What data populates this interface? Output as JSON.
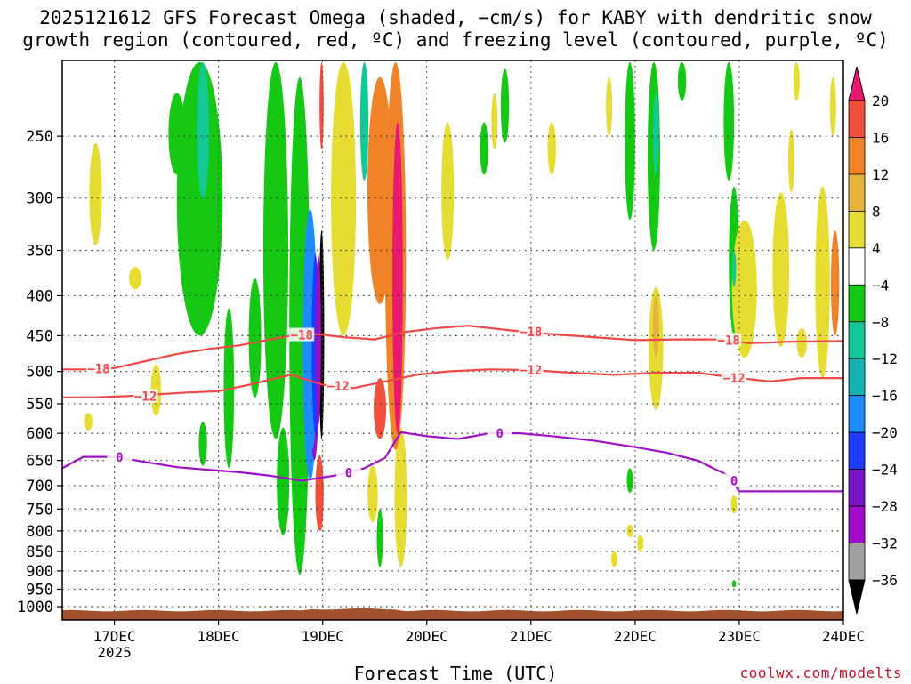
{
  "chart_data": {
    "type": "heatmap",
    "title_line1": "2025121612 GFS Forecast Omega (shaded, −cm/s) for KABY with dendritic snow",
    "title_line2": "growth region (contoured, red, ºC) and freezing level (contoured, purple, ºC)",
    "xlabel": "Forecast Time (UTC)",
    "credit": "coolwx.com/modelts",
    "x_ticks": [
      {
        "day": 17,
        "label": "17DEC",
        "sub": "2025"
      },
      {
        "day": 18,
        "label": "18DEC"
      },
      {
        "day": 19,
        "label": "19DEC"
      },
      {
        "day": 20,
        "label": "20DEC"
      },
      {
        "day": 21,
        "label": "21DEC"
      },
      {
        "day": 22,
        "label": "22DEC"
      },
      {
        "day": 23,
        "label": "23DEC"
      },
      {
        "day": 24,
        "label": "24DEC"
      }
    ],
    "xlim_day": [
      16.5,
      24.0
    ],
    "y_ticks": [
      250,
      300,
      350,
      400,
      450,
      500,
      550,
      600,
      650,
      700,
      750,
      800,
      850,
      900,
      950,
      1000
    ],
    "ylim_hpa": [
      200,
      1040
    ],
    "grid": true,
    "colorbar": {
      "labels": [
        "20",
        "16",
        "12",
        "8",
        "4",
        "−4",
        "−8",
        "−12",
        "−16",
        "−20",
        "−24",
        "−28",
        "−32",
        "−36"
      ],
      "colors": [
        "#e8196e",
        "#f0503c",
        "#f08228",
        "#e6b43c",
        "#e6dc32",
        "#ffffff",
        "#14c814",
        "#14c896",
        "#14b4b4",
        "#1e8cff",
        "#1e3cff",
        "#7814c8",
        "#a00ac8",
        "#a0a0a0"
      ]
    },
    "omega_colors": {
      "strong_up": "#e8196e",
      "up_16": "#f0503c",
      "up_12": "#f08228",
      "up_8": "#e6b43c",
      "up_4": "#e6dc32",
      "down_4": "#14c814",
      "down_8": "#14c896",
      "down_12": "#14b4b4",
      "down_16": "#1e8cff",
      "down_20": "#1e3cff",
      "down_28": "#a00ac8",
      "extreme": "#000000"
    },
    "omega_blobs": [
      {
        "day": 16.82,
        "hpa": 300,
        "w": 0.06,
        "h": 90,
        "level": 4
      },
      {
        "day": 16.75,
        "hpa": 580,
        "w": 0.04,
        "h": 30,
        "level": 4
      },
      {
        "day": 17.2,
        "hpa": 380,
        "w": 0.06,
        "h": 25,
        "level": 4
      },
      {
        "day": 17.4,
        "hpa": 530,
        "w": 0.05,
        "h": 80,
        "level": 4
      },
      {
        "day": 17.6,
        "hpa": 250,
        "w": 0.08,
        "h": 60,
        "level": -4
      },
      {
        "day": 17.82,
        "hpa": 320,
        "w": 0.22,
        "h": 260,
        "level": -4
      },
      {
        "day": 17.85,
        "hpa": 250,
        "w": 0.06,
        "h": 100,
        "level": -8
      },
      {
        "day": 17.85,
        "hpa": 620,
        "w": 0.04,
        "h": 80,
        "level": -4
      },
      {
        "day": 18.1,
        "hpa": 540,
        "w": 0.05,
        "h": 250,
        "level": -4
      },
      {
        "day": 18.35,
        "hpa": 460,
        "w": 0.06,
        "h": 160,
        "level": -4
      },
      {
        "day": 18.55,
        "hpa": 400,
        "w": 0.12,
        "h": 420,
        "level": -4
      },
      {
        "day": 18.62,
        "hpa": 700,
        "w": 0.06,
        "h": 220,
        "level": -4
      },
      {
        "day": 18.78,
        "hpa": 560,
        "w": 0.1,
        "h": 700,
        "level": -4
      },
      {
        "day": 18.88,
        "hpa": 500,
        "w": 0.07,
        "h": 380,
        "level": -16
      },
      {
        "day": 18.92,
        "hpa": 500,
        "w": 0.05,
        "h": 300,
        "level": -28
      },
      {
        "day": 18.99,
        "hpa": 470,
        "w": 0.025,
        "h": 280,
        "level": -36
      },
      {
        "day": 18.97,
        "hpa": 720,
        "w": 0.04,
        "h": 160,
        "level": 16
      },
      {
        "day": 18.99,
        "hpa": 220,
        "w": 0.02,
        "h": 80,
        "level": 16
      },
      {
        "day": 19.2,
        "hpa": 300,
        "w": 0.12,
        "h": 300,
        "level": 4
      },
      {
        "day": 19.55,
        "hpa": 310,
        "w": 0.12,
        "h": 200,
        "level": 12
      },
      {
        "day": 19.7,
        "hpa": 400,
        "w": 0.1,
        "h": 460,
        "level": 12
      },
      {
        "day": 19.72,
        "hpa": 420,
        "w": 0.05,
        "h": 360,
        "level": 20
      },
      {
        "day": 19.55,
        "hpa": 560,
        "w": 0.06,
        "h": 100,
        "level": 16
      },
      {
        "day": 19.75,
        "hpa": 740,
        "w": 0.06,
        "h": 300,
        "level": 4
      },
      {
        "day": 19.48,
        "hpa": 720,
        "w": 0.05,
        "h": 120,
        "level": 4
      },
      {
        "day": 19.55,
        "hpa": 820,
        "w": 0.03,
        "h": 140,
        "level": -4
      },
      {
        "day": 19.4,
        "hpa": 240,
        "w": 0.04,
        "h": 90,
        "level": -8
      },
      {
        "day": 20.2,
        "hpa": 300,
        "w": 0.06,
        "h": 120,
        "level": 4
      },
      {
        "day": 20.55,
        "hpa": 260,
        "w": 0.04,
        "h": 40,
        "level": -4
      },
      {
        "day": 20.65,
        "hpa": 240,
        "w": 0.03,
        "h": 40,
        "level": 4
      },
      {
        "day": 20.75,
        "hpa": 230,
        "w": 0.04,
        "h": 50,
        "level": -4
      },
      {
        "day": 21.2,
        "hpa": 260,
        "w": 0.04,
        "h": 40,
        "level": 4
      },
      {
        "day": 21.75,
        "hpa": 230,
        "w": 0.03,
        "h": 40,
        "level": 4
      },
      {
        "day": 21.95,
        "hpa": 260,
        "w": 0.05,
        "h": 120,
        "level": -4
      },
      {
        "day": 22.18,
        "hpa": 270,
        "w": 0.06,
        "h": 160,
        "level": -4
      },
      {
        "day": 22.2,
        "hpa": 250,
        "w": 0.03,
        "h": 60,
        "level": -8
      },
      {
        "day": 22.2,
        "hpa": 475,
        "w": 0.07,
        "h": 170,
        "level": 4
      },
      {
        "day": 22.2,
        "hpa": 440,
        "w": 0.03,
        "h": 80,
        "level": 8
      },
      {
        "day": 21.95,
        "hpa": 690,
        "w": 0.03,
        "h": 50,
        "level": -4
      },
      {
        "day": 21.95,
        "hpa": 800,
        "w": 0.03,
        "h": 30,
        "level": 4
      },
      {
        "day": 22.05,
        "hpa": 830,
        "w": 0.03,
        "h": 40,
        "level": 4
      },
      {
        "day": 21.8,
        "hpa": 870,
        "w": 0.03,
        "h": 40,
        "level": 4
      },
      {
        "day": 22.45,
        "hpa": 210,
        "w": 0.04,
        "h": 30,
        "level": -4
      },
      {
        "day": 22.9,
        "hpa": 240,
        "w": 0.05,
        "h": 90,
        "level": -4
      },
      {
        "day": 22.95,
        "hpa": 370,
        "w": 0.05,
        "h": 160,
        "level": -4
      },
      {
        "day": 22.95,
        "hpa": 370,
        "w": 0.02,
        "h": 40,
        "level": -8
      },
      {
        "day": 23.05,
        "hpa": 400,
        "w": 0.12,
        "h": 160,
        "level": 4
      },
      {
        "day": 23.4,
        "hpa": 380,
        "w": 0.08,
        "h": 170,
        "level": 4
      },
      {
        "day": 23.5,
        "hpa": 270,
        "w": 0.03,
        "h": 50,
        "level": 4
      },
      {
        "day": 23.6,
        "hpa": 460,
        "w": 0.05,
        "h": 40,
        "level": 4
      },
      {
        "day": 23.8,
        "hpa": 400,
        "w": 0.07,
        "h": 220,
        "level": 4
      },
      {
        "day": 23.92,
        "hpa": 390,
        "w": 0.04,
        "h": 120,
        "level": 12
      },
      {
        "day": 23.9,
        "hpa": 230,
        "w": 0.03,
        "h": 40,
        "level": 4
      },
      {
        "day": 22.95,
        "hpa": 740,
        "w": 0.03,
        "h": 40,
        "level": 4
      },
      {
        "day": 22.95,
        "hpa": 935,
        "w": 0.02,
        "h": 20,
        "level": -4
      },
      {
        "day": 23.55,
        "hpa": 210,
        "w": 0.03,
        "h": 30,
        "level": 4
      }
    ],
    "dgz_top": {
      "label": "−18",
      "points": [
        [
          16.5,
          497
        ],
        [
          16.8,
          497
        ],
        [
          17.0,
          495
        ],
        [
          17.3,
          485
        ],
        [
          17.6,
          475
        ],
        [
          17.9,
          468
        ],
        [
          18.2,
          463
        ],
        [
          18.5,
          455
        ],
        [
          18.7,
          450
        ],
        [
          18.95,
          448
        ],
        [
          19.2,
          452
        ],
        [
          19.5,
          455
        ],
        [
          19.8,
          445
        ],
        [
          20.1,
          440
        ],
        [
          20.4,
          437
        ],
        [
          20.8,
          443
        ],
        [
          21.2,
          448
        ],
        [
          21.6,
          452
        ],
        [
          22.0,
          456
        ],
        [
          22.4,
          455
        ],
        [
          22.8,
          455
        ],
        [
          23.1,
          460
        ],
        [
          23.5,
          458
        ],
        [
          24.0,
          457
        ]
      ],
      "labels_at": [
        [
          16.85,
          496
        ],
        [
          18.8,
          449
        ],
        [
          21.0,
          445
        ],
        [
          22.9,
          456
        ]
      ]
    },
    "dgz_bottom": {
      "label": "−12",
      "points": [
        [
          16.5,
          540
        ],
        [
          16.8,
          540
        ],
        [
          17.1,
          538
        ],
        [
          17.4,
          535
        ],
        [
          17.7,
          532
        ],
        [
          18.0,
          530
        ],
        [
          18.3,
          520
        ],
        [
          18.5,
          512
        ],
        [
          18.7,
          505
        ],
        [
          19.0,
          520
        ],
        [
          19.3,
          525
        ],
        [
          19.6,
          515
        ],
        [
          19.9,
          505
        ],
        [
          20.2,
          500
        ],
        [
          20.6,
          497
        ],
        [
          21.0,
          498
        ],
        [
          21.4,
          502
        ],
        [
          21.8,
          505
        ],
        [
          22.2,
          502
        ],
        [
          22.6,
          502
        ],
        [
          23.0,
          510
        ],
        [
          23.3,
          515
        ],
        [
          23.6,
          510
        ],
        [
          24.0,
          510
        ]
      ],
      "labels_at": [
        [
          17.3,
          538
        ],
        [
          19.15,
          522
        ],
        [
          21.0,
          498
        ],
        [
          22.95,
          510
        ]
      ]
    },
    "freezing_level": {
      "label": "0",
      "points": [
        [
          16.5,
          665
        ],
        [
          16.7,
          643
        ],
        [
          17.0,
          643
        ],
        [
          17.3,
          653
        ],
        [
          17.6,
          663
        ],
        [
          17.9,
          668
        ],
        [
          18.2,
          673
        ],
        [
          18.5,
          680
        ],
        [
          18.8,
          690
        ],
        [
          19.1,
          680
        ],
        [
          19.4,
          665
        ],
        [
          19.6,
          645
        ],
        [
          19.75,
          598
        ],
        [
          20.0,
          605
        ],
        [
          20.3,
          610
        ],
        [
          20.6,
          600
        ],
        [
          20.9,
          600
        ],
        [
          21.2,
          605
        ],
        [
          21.6,
          613
        ],
        [
          22.0,
          625
        ],
        [
          22.3,
          635
        ],
        [
          22.6,
          650
        ],
        [
          22.9,
          680
        ],
        [
          23.0,
          712
        ],
        [
          23.3,
          712
        ],
        [
          23.6,
          712
        ],
        [
          24.0,
          712
        ]
      ],
      "labels_at": [
        [
          17.05,
          644
        ],
        [
          19.25,
          674
        ],
        [
          20.7,
          600
        ],
        [
          22.95,
          690
        ]
      ]
    }
  }
}
